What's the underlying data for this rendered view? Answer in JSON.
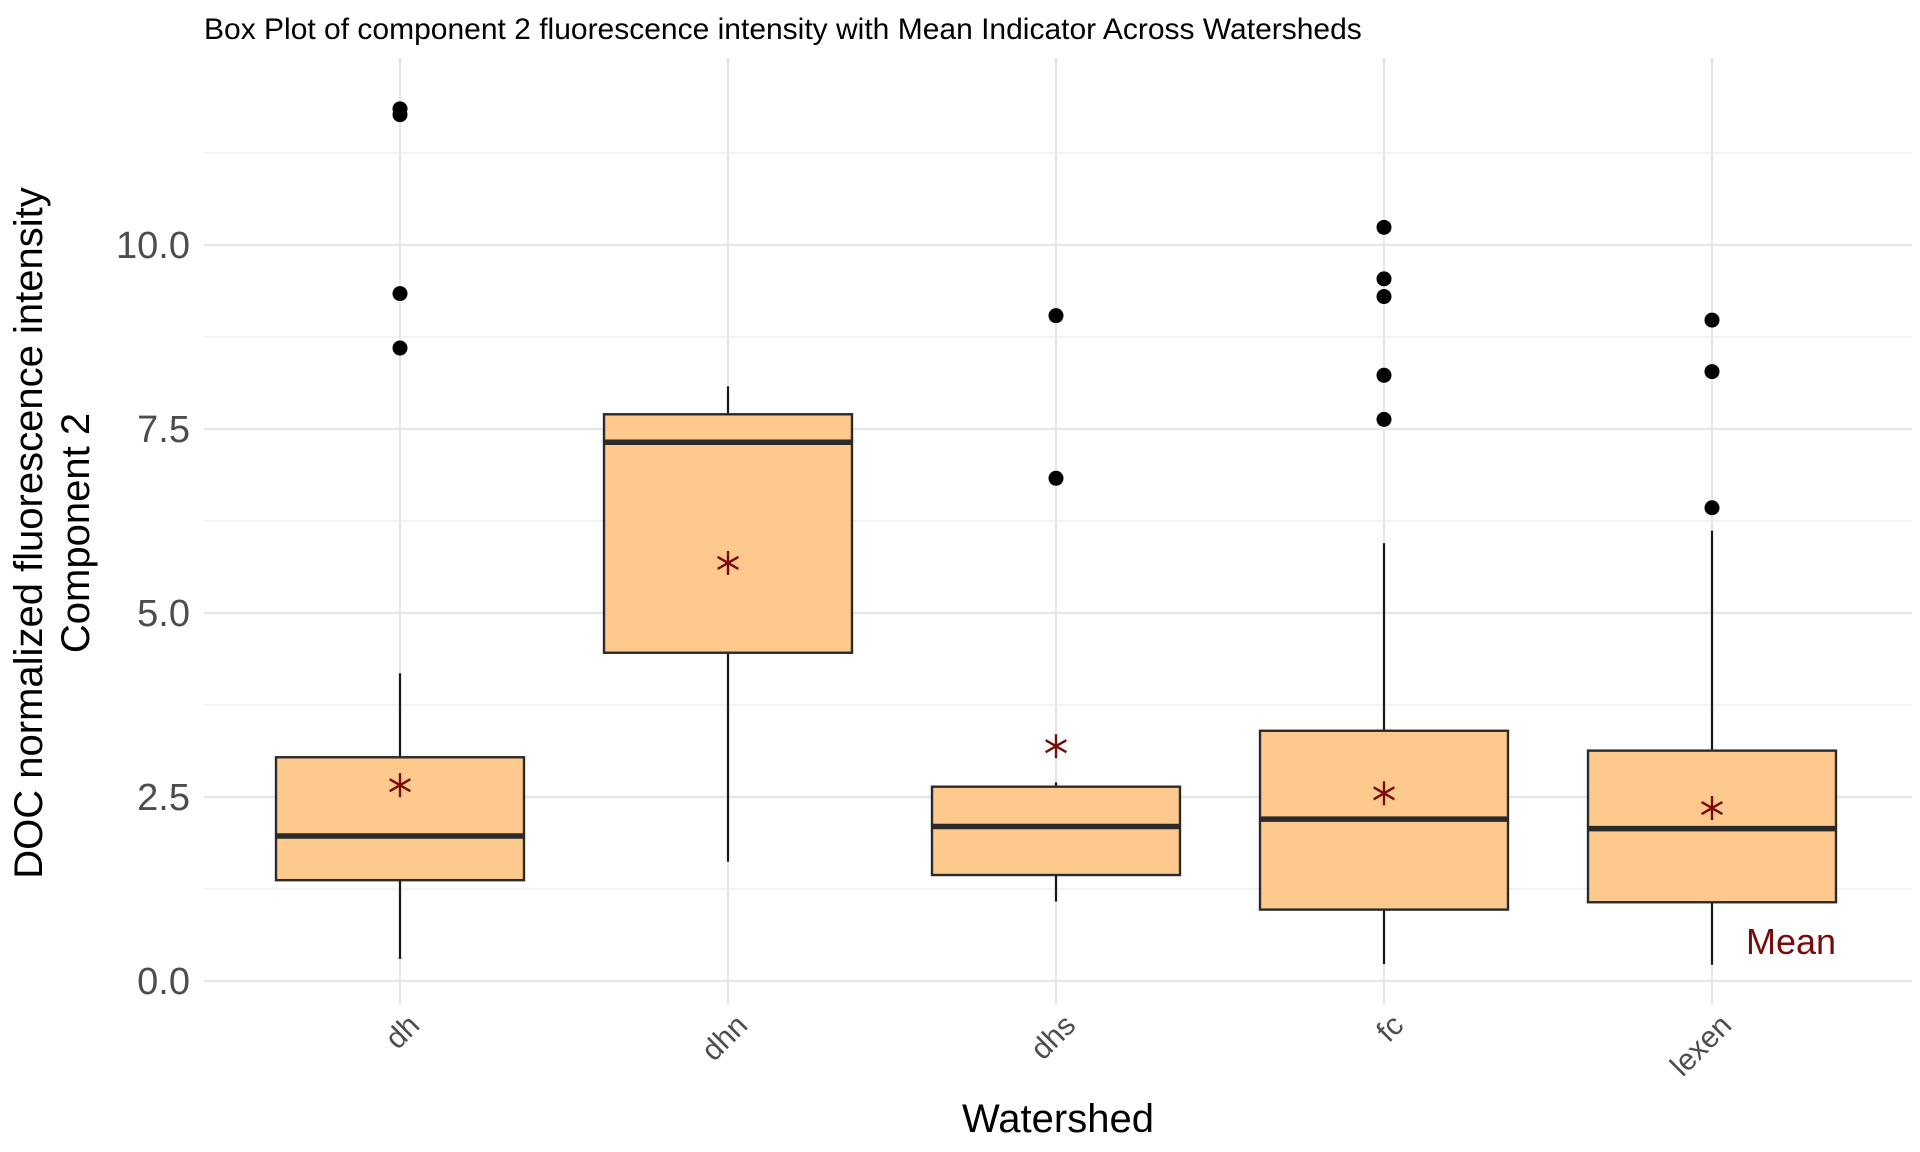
{
  "chart_data": {
    "type": "box",
    "title": "Box Plot of component 2 fluorescence intensity with Mean Indicator Across Watersheds",
    "xlabel": "Watershed",
    "ylabel_line1": "DOC normalized fluorescence intensity",
    "ylabel_line2": "Component 2",
    "ylim": [
      -0.3,
      12.4
    ],
    "yticks": [
      0.0,
      2.5,
      5.0,
      7.5,
      10.0
    ],
    "ytick_labels": [
      "0.0",
      "2.5",
      "5.0",
      "7.5",
      "10.0"
    ],
    "grid": true,
    "categories": [
      "dh",
      "dhn",
      "dhs",
      "fc",
      "lexen"
    ],
    "boxes": [
      {
        "category": "dh",
        "whisker_low": 0.3,
        "q1": 1.37,
        "median": 1.97,
        "q3": 3.04,
        "whisker_high": 4.18,
        "mean": 2.66,
        "outliers": [
          8.6,
          9.34,
          11.77,
          11.85
        ]
      },
      {
        "category": "dhn",
        "whisker_low": 1.62,
        "q1": 4.46,
        "median": 7.32,
        "q3": 7.7,
        "whisker_high": 8.08,
        "mean": 5.68,
        "outliers": []
      },
      {
        "category": "dhs",
        "whisker_low": 1.08,
        "q1": 1.44,
        "median": 2.1,
        "q3": 2.64,
        "whisker_high": 2.7,
        "mean": 3.19,
        "outliers": [
          6.83,
          9.04
        ]
      },
      {
        "category": "fc",
        "whisker_low": 0.23,
        "q1": 0.97,
        "median": 2.2,
        "q3": 3.4,
        "whisker_high": 5.95,
        "mean": 2.55,
        "outliers": [
          7.63,
          8.23,
          9.3,
          9.54,
          10.24
        ]
      },
      {
        "category": "lexen",
        "whisker_low": 0.22,
        "q1": 1.07,
        "median": 2.07,
        "q3": 3.13,
        "whisker_high": 6.12,
        "mean": 2.35,
        "outliers": [
          6.43,
          8.28,
          8.98
        ]
      }
    ],
    "mean_annotation": "Mean",
    "colors": {
      "box_fill": "#fec98c",
      "box_stroke": "#2b2b2b",
      "mean_marker": "#7a0b0b",
      "outlier": "#000000"
    }
  }
}
